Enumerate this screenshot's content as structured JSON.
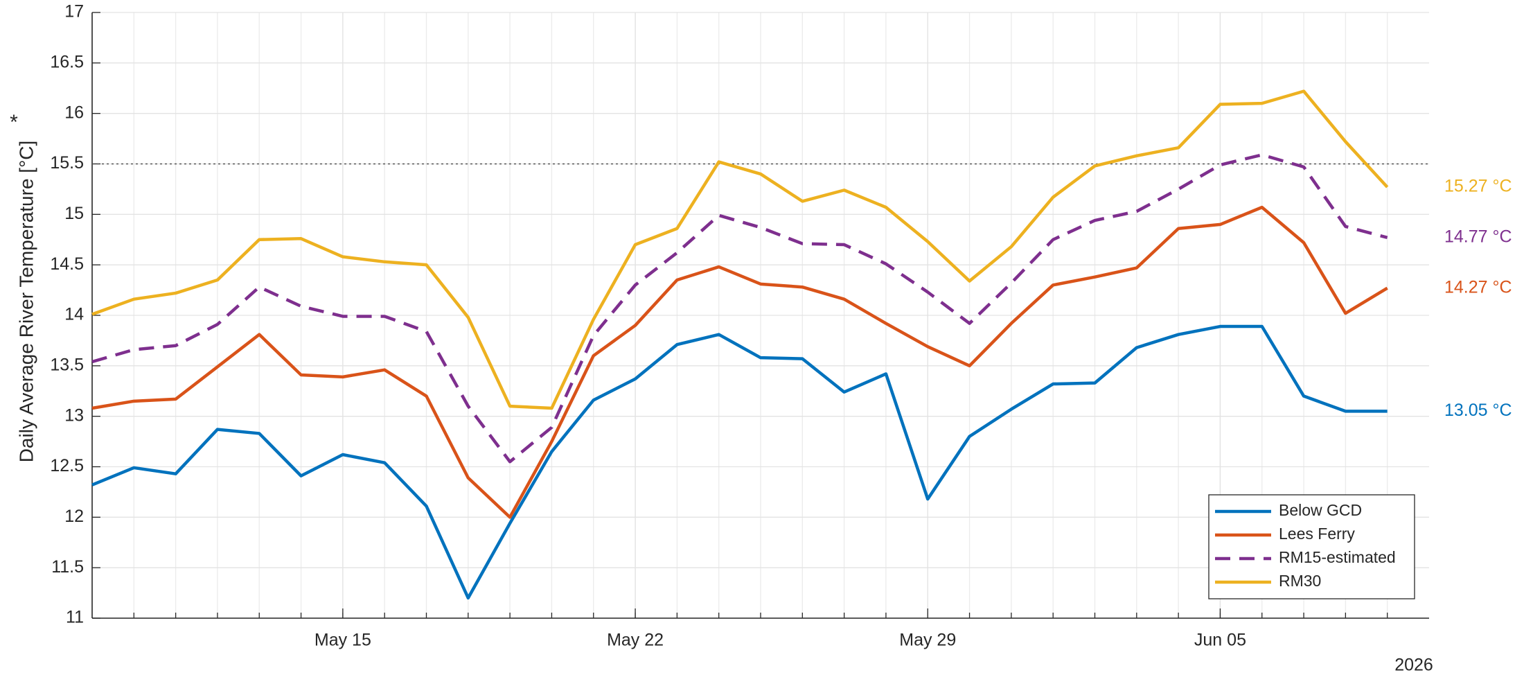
{
  "chart_data": {
    "type": "line",
    "ylabel": "Daily Average River Temperature [°C]",
    "ylabel_note": "*",
    "x": [
      "2026-05-09",
      "2026-05-10",
      "2026-05-11",
      "2026-05-12",
      "2026-05-13",
      "2026-05-14",
      "2026-05-15",
      "2026-05-16",
      "2026-05-17",
      "2026-05-18",
      "2026-05-19",
      "2026-05-20",
      "2026-05-21",
      "2026-05-22",
      "2026-05-23",
      "2026-05-24",
      "2026-05-25",
      "2026-05-26",
      "2026-05-27",
      "2026-05-28",
      "2026-05-29",
      "2026-05-30",
      "2026-05-31",
      "2026-06-01",
      "2026-06-02",
      "2026-06-03",
      "2026-06-04",
      "2026-06-05",
      "2026-06-06",
      "2026-06-07",
      "2026-06-08",
      "2026-06-09"
    ],
    "xlim": [
      "2026-05-09",
      "2026-06-10"
    ],
    "xticks": [
      {
        "value": "2026-05-15",
        "label": "May 15"
      },
      {
        "value": "2026-05-22",
        "label": "May 22"
      },
      {
        "value": "2026-05-29",
        "label": "May 29"
      },
      {
        "value": "2026-06-05",
        "label": "Jun 05"
      }
    ],
    "x_secondary_label": "2026",
    "ylim": [
      11,
      17
    ],
    "yticks": [
      11,
      11.5,
      12,
      12.5,
      13,
      13.5,
      14,
      14.5,
      15,
      15.5,
      16,
      16.5,
      17
    ],
    "grid": true,
    "minor_grid": true,
    "reference_line": 15.5,
    "legend": "lower right",
    "series": [
      {
        "name": "Below GCD",
        "color": "#0072bd",
        "line_style": "solid",
        "end_label": "13.05 °C",
        "values": [
          12.32,
          12.49,
          12.43,
          12.87,
          12.83,
          12.41,
          12.62,
          12.54,
          12.11,
          11.2,
          11.94,
          12.65,
          13.16,
          13.37,
          13.71,
          13.81,
          13.58,
          13.57,
          13.24,
          13.42,
          12.18,
          12.8,
          13.07,
          13.32,
          13.33,
          13.68,
          13.81,
          13.89,
          13.89,
          13.2,
          13.05,
          13.05
        ]
      },
      {
        "name": "Lees Ferry",
        "color": "#d95319",
        "line_style": "solid",
        "end_label": "14.27 °C",
        "values": [
          13.08,
          13.15,
          13.17,
          13.49,
          13.81,
          13.41,
          13.39,
          13.46,
          13.2,
          12.39,
          12.0,
          12.75,
          13.6,
          13.9,
          14.35,
          14.48,
          14.31,
          14.28,
          14.16,
          13.92,
          13.69,
          13.5,
          13.92,
          14.3,
          14.38,
          14.47,
          14.86,
          14.9,
          15.07,
          14.72,
          14.02,
          14.27
        ]
      },
      {
        "name": "RM15-estimated",
        "color": "#7e2f8e",
        "line_style": "dashed",
        "end_label": "14.77 °C",
        "values": [
          13.54,
          13.66,
          13.7,
          13.91,
          14.28,
          14.09,
          13.99,
          13.99,
          13.84,
          13.1,
          12.55,
          12.89,
          13.8,
          14.3,
          14.62,
          14.99,
          14.87,
          14.71,
          14.7,
          14.51,
          14.23,
          13.92,
          14.32,
          14.75,
          14.94,
          15.03,
          15.25,
          15.49,
          15.59,
          15.47,
          14.88,
          14.77
        ]
      },
      {
        "name": "RM30",
        "color": "#edb120",
        "line_style": "solid",
        "end_label": "15.27 °C",
        "values": [
          14.01,
          14.16,
          14.22,
          14.35,
          14.75,
          14.76,
          14.58,
          14.53,
          14.5,
          13.98,
          13.1,
          13.08,
          13.96,
          14.7,
          14.86,
          15.52,
          15.4,
          15.13,
          15.24,
          15.07,
          14.73,
          14.34,
          14.68,
          15.17,
          15.48,
          15.58,
          15.66,
          16.09,
          16.1,
          16.22,
          15.72,
          15.27
        ]
      }
    ]
  }
}
